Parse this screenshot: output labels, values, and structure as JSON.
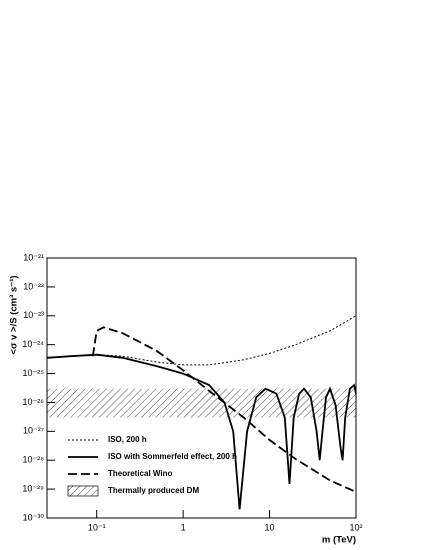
{
  "chart_data": {
    "type": "line",
    "x_label": "m (TeV)",
    "y_label": "<σ v >/S (cm³ s⁻¹)",
    "log_x": true,
    "log_y": true,
    "xlim": [
      0.0266,
      100
    ],
    "ylim": [
      1e-30,
      1e-21
    ],
    "xticks": [
      {
        "value": 0.1,
        "label": "10⁻¹"
      },
      1,
      10,
      {
        "value": 100,
        "label": "10²"
      }
    ],
    "yticks": [
      {
        "value": 1e-30,
        "label": "10⁻³⁰"
      },
      {
        "value": 1e-29,
        "label": "10⁻²⁹"
      },
      {
        "value": 1e-28,
        "label": "10⁻²⁸"
      },
      {
        "value": 1e-27,
        "label": "10⁻²⁷"
      },
      {
        "value": 1e-26,
        "label": "10⁻²⁶"
      },
      {
        "value": 1e-25,
        "label": "10⁻²⁵"
      },
      {
        "value": 1e-24,
        "label": "10⁻²⁴"
      },
      {
        "value": 1e-23,
        "label": "10⁻²³"
      },
      {
        "value": 1e-22,
        "label": "10⁻²²"
      },
      {
        "value": 1e-21,
        "label": "10⁻²¹"
      }
    ],
    "series": [
      {
        "name": "ISO, 200 h",
        "color": "#000000",
        "dash": "dotted",
        "x": [
          0.0266,
          0.05,
          0.1,
          0.2,
          0.5,
          1,
          2,
          5,
          10,
          20,
          50,
          100
        ],
        "values": [
          3.5e-25,
          4e-25,
          4.5e-25,
          4e-25,
          2.5e-25,
          2e-25,
          2e-25,
          3e-25,
          5e-25,
          1e-24,
          3e-24,
          1e-23
        ]
      },
      {
        "name": "ISO with Sommerfeld effect, 200 h",
        "color": "#000000",
        "dash": "solid",
        "x": [
          0.0266,
          0.05,
          0.1,
          0.2,
          0.5,
          1,
          2,
          3,
          3.8,
          4.5,
          5.5,
          7,
          9,
          12,
          15,
          17,
          19,
          22,
          25,
          30,
          35,
          38,
          41,
          45,
          50,
          58,
          66,
          70,
          75,
          85,
          95,
          100
        ],
        "values": [
          3.5e-25,
          4e-25,
          4.5e-25,
          3.5e-25,
          1.8e-25,
          1e-25,
          4e-26,
          1e-26,
          1e-27,
          2e-30,
          1e-27,
          1.5e-26,
          3e-26,
          2e-26,
          3e-27,
          1.5e-29,
          3e-27,
          2e-26,
          3e-26,
          1.5e-26,
          1e-27,
          1e-28,
          1e-27,
          1.5e-26,
          3e-26,
          8e-27,
          3e-28,
          1e-28,
          3e-27,
          3e-26,
          4e-26,
          2e-26
        ]
      },
      {
        "name": "Theoretical Wino",
        "color": "#000000",
        "dash": "dashed",
        "x": [
          0.09,
          0.1,
          0.12,
          0.2,
          0.5,
          1,
          2,
          5,
          10,
          20,
          50,
          100
        ],
        "values": [
          4e-25,
          3e-24,
          4e-24,
          2.5e-24,
          6e-25,
          1.3e-25,
          2.5e-26,
          3e-27,
          5e-28,
          1.1e-28,
          2e-29,
          8e-30
        ]
      }
    ],
    "band": {
      "name": "Thermally produced DM",
      "values": [
        3e-27,
        3e-26
      ]
    }
  }
}
